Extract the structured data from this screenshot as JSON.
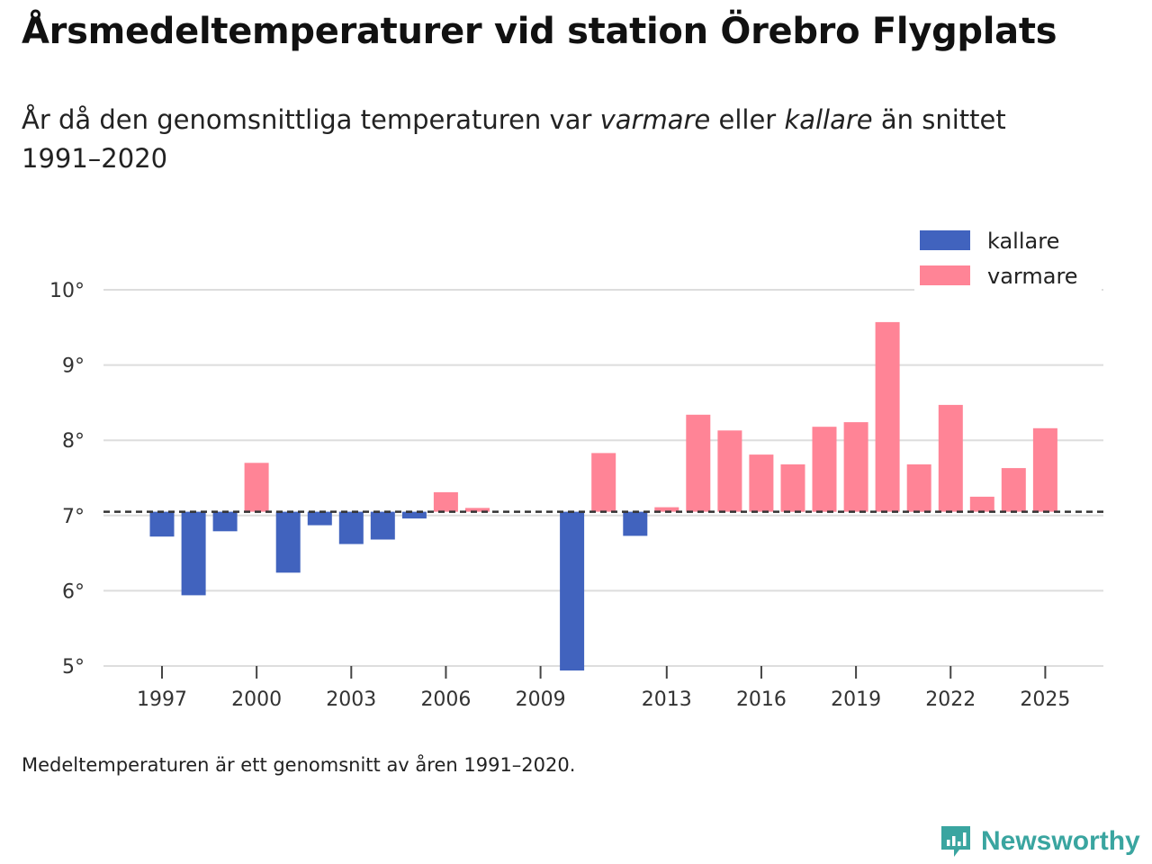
{
  "header": {
    "title": "Årsmedeltemperaturer vid station Örebro Flygplats",
    "subtitle_prefix": "År då den genomsnittliga temperaturen var ",
    "subtitle_warmer": "varmare",
    "subtitle_middle": " eller ",
    "subtitle_colder": "kallare",
    "subtitle_suffix": " än snittet 1991–2020"
  },
  "footer": {
    "note": "Medeltemperaturen är ett genomsnitt av åren 1991–2020.",
    "brand": "Newsworthy"
  },
  "colors": {
    "colder": "#4163be",
    "warmer": "#ff8496",
    "baseline": "#333333",
    "grid": "#dddddd"
  },
  "chart_data": {
    "type": "bar",
    "title": "Årsmedeltemperaturer vid station Örebro Flygplats",
    "baseline": 7.05,
    "ylim": [
      5,
      10
    ],
    "yticks": [
      5,
      6,
      7,
      8,
      9,
      10
    ],
    "ytick_labels": [
      "5°",
      "6°",
      "7°",
      "8°",
      "9°",
      "10°"
    ],
    "xticks": [
      1997,
      2000,
      2003,
      2006,
      2009,
      2013,
      2016,
      2019,
      2022,
      2025
    ],
    "xtick_labels": [
      "1997",
      "2000",
      "2003",
      "2006",
      "2009",
      "2013",
      "2016",
      "2019",
      "2022",
      "2025"
    ],
    "legend": {
      "position": "top-right",
      "items": [
        {
          "key": "colder",
          "label": "kallare"
        },
        {
          "key": "warmer",
          "label": "varmare"
        }
      ]
    },
    "years": [
      1997,
      1998,
      1999,
      2000,
      2001,
      2002,
      2003,
      2004,
      2005,
      2006,
      2007,
      2010,
      2011,
      2012,
      2013,
      2014,
      2015,
      2016,
      2017,
      2018,
      2019,
      2020,
      2021,
      2022,
      2023,
      2024,
      2025
    ],
    "values": [
      6.72,
      5.94,
      6.79,
      7.7,
      6.24,
      6.87,
      6.62,
      6.68,
      6.96,
      7.31,
      7.1,
      4.94,
      7.83,
      6.73,
      7.11,
      8.34,
      8.13,
      7.81,
      7.68,
      8.18,
      8.24,
      9.57,
      7.68,
      8.47,
      7.25,
      7.63,
      8.16
    ]
  }
}
